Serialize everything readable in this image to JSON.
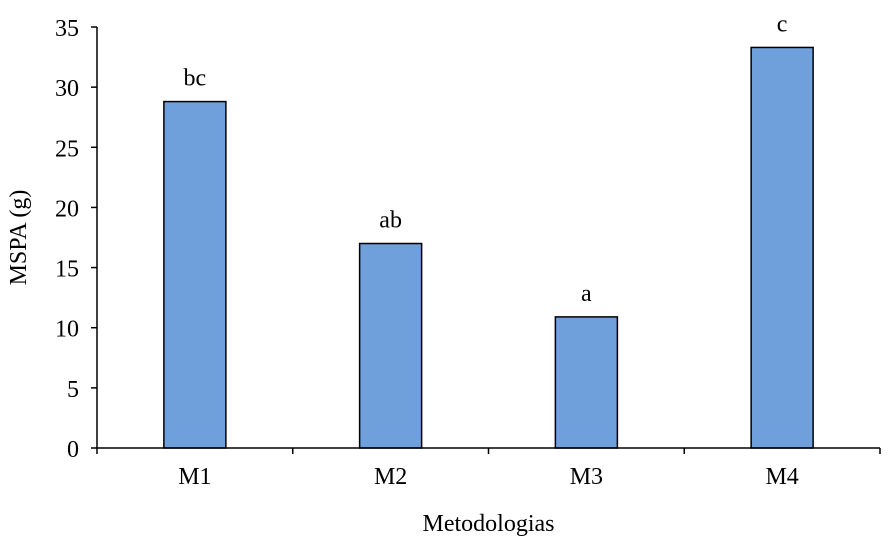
{
  "chart_data": {
    "type": "bar",
    "title": "",
    "xlabel": "Metodologias",
    "ylabel": "MSPA (g)",
    "categories": [
      "M1",
      "M2",
      "M3",
      "M4"
    ],
    "values": [
      28.8,
      17.0,
      10.9,
      33.3
    ],
    "data_labels": [
      "bc",
      "ab",
      "a",
      "c"
    ],
    "ylim": [
      0,
      35
    ],
    "yticks": [
      0,
      5,
      10,
      15,
      20,
      25,
      30,
      35
    ],
    "grid": false,
    "legend": "none",
    "bar_color": "#6fa0dc",
    "bar_edge_color": "#000000"
  }
}
